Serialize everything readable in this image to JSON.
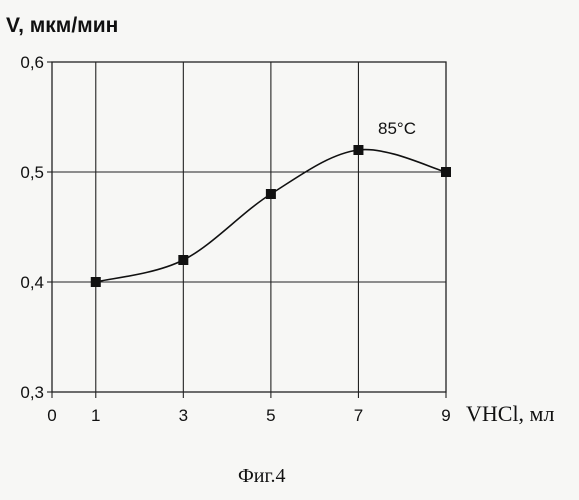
{
  "chart_data": {
    "type": "line",
    "title": "",
    "ylabel": "V, мкм/мин",
    "xlabel": "VHCl, мл",
    "annotation": "85°C",
    "caption": "Фиг.4",
    "x_ticks": [
      "0",
      "1",
      "3",
      "5",
      "7",
      "9"
    ],
    "y_ticks": [
      "0,3",
      "0,4",
      "0,5",
      "0,6"
    ],
    "xlim": [
      0,
      9
    ],
    "ylim": [
      0.3,
      0.6
    ],
    "grid": true,
    "series": [
      {
        "x": [
          1,
          3,
          5,
          7,
          9
        ],
        "y": [
          0.4,
          0.42,
          0.48,
          0.52,
          0.5
        ]
      }
    ]
  }
}
